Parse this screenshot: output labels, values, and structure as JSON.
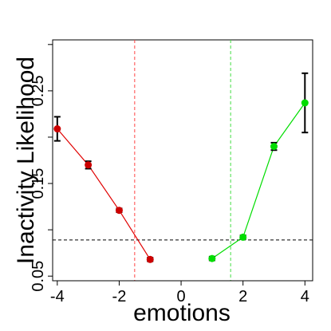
{
  "chart_data": {
    "type": "scatter",
    "xlabel": "emotions",
    "ylabel": "Inactivity Likelihood",
    "xlim": [
      -4.15,
      4.25
    ],
    "ylim": [
      0.045,
      0.305
    ],
    "xticks": [
      -4,
      -2,
      0,
      2,
      4
    ],
    "xtick_labels": [
      "-4",
      "-2",
      "0",
      "2",
      "4"
    ],
    "yticks": [
      0.05,
      0.15,
      0.25
    ],
    "ytick_labels": [
      "0.05",
      "0.15",
      "0.25"
    ],
    "minor_yticks": [
      0.1,
      0.2,
      0.3
    ],
    "grid": false,
    "series": [
      {
        "color": "#cc0000",
        "line_color": "#e00000",
        "x": [
          -4,
          -3,
          -2,
          -1
        ],
        "y": [
          0.209,
          0.17,
          0.121,
          0.068
        ],
        "err": [
          0.013,
          0.004,
          0.002,
          0.002
        ]
      },
      {
        "color": "#00dd00",
        "line_color": "#00dd00",
        "x": [
          1,
          2,
          3,
          4
        ],
        "y": [
          0.069,
          0.092,
          0.19,
          0.237
        ],
        "err": [
          0.002,
          0.002,
          0.004,
          0.032
        ]
      }
    ],
    "reference_lines": [
      {
        "orientation": "horizontal",
        "value": 0.089,
        "color": "#000000",
        "style": "dashed"
      },
      {
        "orientation": "vertical",
        "value": -1.5,
        "color": "#ff4444",
        "style": "dashed"
      },
      {
        "orientation": "vertical",
        "value": 1.6,
        "color": "#44dd44",
        "style": "dashed"
      }
    ]
  }
}
